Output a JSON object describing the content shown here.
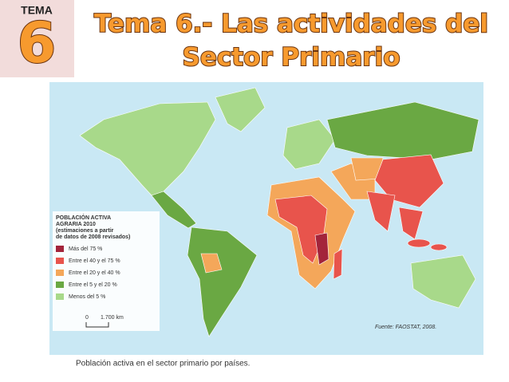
{
  "header": {
    "tema_label": "TEMA",
    "tema_number": "6",
    "title_lines": [
      "Tema 6.- Las actividades del",
      "Sector Primario"
    ]
  },
  "map": {
    "legend": {
      "title_lines": [
        "POBLACIÓN ACTIVA",
        "AGRARIA 2010",
        "(estimaciones a partir",
        "de datos de 2008 revisados)"
      ],
      "items": [
        {
          "label": "Más del 75 %",
          "color": "#a3243b"
        },
        {
          "label": "Entre el 40 y el 75 %",
          "color": "#e8544c"
        },
        {
          "label": "Entre el 20 y el 40 %",
          "color": "#f4a75a"
        },
        {
          "label": "Entre el 5 y el 20 %",
          "color": "#6aa843"
        },
        {
          "label": "Menos del 5 %",
          "color": "#a8d98a"
        }
      ]
    },
    "scale": {
      "start": "0",
      "end": "1.700 km"
    },
    "source": "Fuente: FAOSTAT, 2008."
  },
  "caption": "Población activa en el sector primario por países."
}
